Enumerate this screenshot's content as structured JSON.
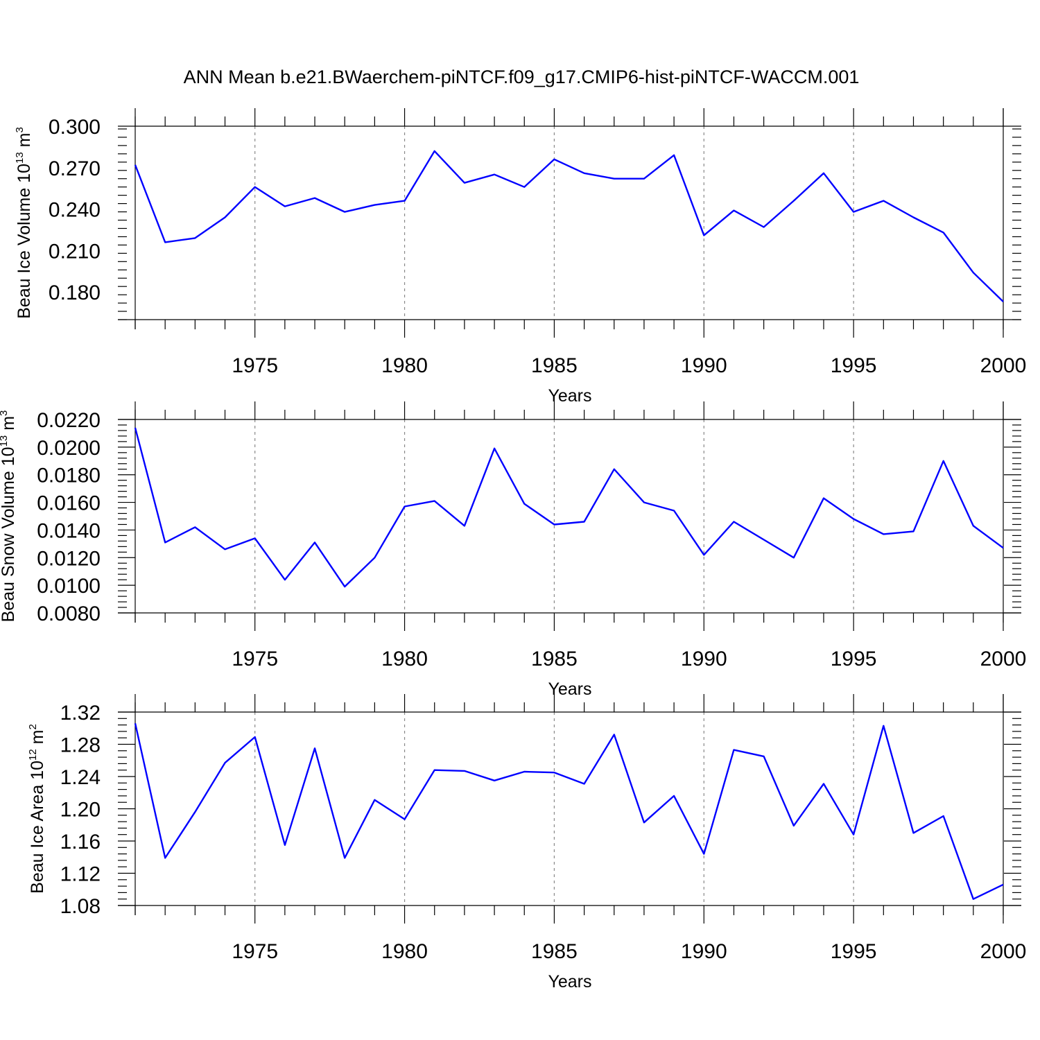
{
  "title": "ANN Mean b.e21.BWaerchem-piNTCF.f09_g17.CMIP6-hist-piNTCF-WACCM.001",
  "line_color": "#0000ff",
  "chart_data": [
    {
      "type": "line",
      "title": "",
      "xlabel": "Years",
      "ylabel": "Beau Ice Volume 10",
      "ylabel_sup": "13",
      "ylabel_unit": " m",
      "ylabel_unit_sup": "3",
      "xlim": [
        1971,
        2000
      ],
      "ylim": [
        0.16,
        0.3
      ],
      "yticks": [
        0.18,
        0.21,
        0.24,
        0.27,
        0.3
      ],
      "ytick_labels": [
        "0.180",
        "0.210",
        "0.240",
        "0.270",
        "0.300"
      ],
      "xticks": [
        1975,
        1980,
        1985,
        1990,
        1995,
        2000
      ],
      "xtick_labels": [
        "1975",
        "1980",
        "1985",
        "1990",
        "1995",
        "2000"
      ],
      "grid_x": [
        1975,
        1980,
        1985,
        1990,
        1995
      ],
      "x": [
        1971,
        1972,
        1973,
        1974,
        1975,
        1976,
        1977,
        1978,
        1979,
        1980,
        1981,
        1982,
        1983,
        1984,
        1985,
        1986,
        1987,
        1988,
        1989,
        1990,
        1991,
        1992,
        1993,
        1994,
        1995,
        1996,
        1997,
        1998,
        1999,
        2000
      ],
      "series": [
        {
          "name": "Beau Ice Volume",
          "values": [
            0.272,
            0.216,
            0.219,
            0.234,
            0.256,
            0.242,
            0.248,
            0.238,
            0.243,
            0.246,
            0.282,
            0.259,
            0.265,
            0.256,
            0.276,
            0.266,
            0.262,
            0.262,
            0.279,
            0.221,
            0.239,
            0.227,
            0.246,
            0.266,
            0.238,
            0.246,
            0.234,
            0.223,
            0.194,
            0.173
          ]
        }
      ]
    },
    {
      "type": "line",
      "title": "",
      "xlabel": "Years",
      "ylabel": "Beau Snow Volume 10",
      "ylabel_sup": "13",
      "ylabel_unit": " m",
      "ylabel_unit_sup": "3",
      "xlim": [
        1971,
        2000
      ],
      "ylim": [
        0.008,
        0.022
      ],
      "yticks": [
        0.008,
        0.01,
        0.012,
        0.014,
        0.016,
        0.018,
        0.02,
        0.022
      ],
      "ytick_labels": [
        "0.0080",
        "0.0100",
        "0.0120",
        "0.0140",
        "0.0160",
        "0.0180",
        "0.0200",
        "0.0220"
      ],
      "xticks": [
        1975,
        1980,
        1985,
        1990,
        1995,
        2000
      ],
      "xtick_labels": [
        "1975",
        "1980",
        "1985",
        "1990",
        "1995",
        "2000"
      ],
      "grid_x": [
        1975,
        1980,
        1985,
        1990,
        1995
      ],
      "x": [
        1971,
        1972,
        1973,
        1974,
        1975,
        1976,
        1977,
        1978,
        1979,
        1980,
        1981,
        1982,
        1983,
        1984,
        1985,
        1986,
        1987,
        1988,
        1989,
        1990,
        1991,
        1992,
        1993,
        1994,
        1995,
        1996,
        1997,
        1998,
        1999,
        2000
      ],
      "series": [
        {
          "name": "Beau Snow Volume",
          "values": [
            0.0214,
            0.0131,
            0.0142,
            0.0126,
            0.0134,
            0.0104,
            0.0131,
            0.0099,
            0.012,
            0.0157,
            0.0161,
            0.0143,
            0.0199,
            0.0159,
            0.0144,
            0.0146,
            0.0184,
            0.016,
            0.0154,
            0.0122,
            0.0146,
            0.0133,
            0.012,
            0.0163,
            0.0148,
            0.0137,
            0.0139,
            0.019,
            0.0143,
            0.0127
          ]
        }
      ]
    },
    {
      "type": "line",
      "title": "",
      "xlabel": "Years",
      "ylabel": "Beau Ice Area 10",
      "ylabel_sup": "12",
      "ylabel_unit": " m",
      "ylabel_unit_sup": "2",
      "xlim": [
        1971,
        2000
      ],
      "ylim": [
        1.08,
        1.32
      ],
      "yticks": [
        1.08,
        1.12,
        1.16,
        1.2,
        1.24,
        1.28,
        1.32
      ],
      "ytick_labels": [
        "1.08",
        "1.12",
        "1.16",
        "1.20",
        "1.24",
        "1.28",
        "1.32"
      ],
      "xticks": [
        1975,
        1980,
        1985,
        1990,
        1995,
        2000
      ],
      "xtick_labels": [
        "1975",
        "1980",
        "1985",
        "1990",
        "1995",
        "2000"
      ],
      "grid_x": [
        1975,
        1980,
        1985,
        1990,
        1995
      ],
      "x": [
        1971,
        1972,
        1973,
        1974,
        1975,
        1976,
        1977,
        1978,
        1979,
        1980,
        1981,
        1982,
        1983,
        1984,
        1985,
        1986,
        1987,
        1988,
        1989,
        1990,
        1991,
        1992,
        1993,
        1994,
        1995,
        1996,
        1997,
        1998,
        1999,
        2000
      ],
      "series": [
        {
          "name": "Beau Ice Area",
          "values": [
            1.306,
            1.139,
            1.196,
            1.257,
            1.289,
            1.155,
            1.275,
            1.139,
            1.211,
            1.187,
            1.248,
            1.247,
            1.235,
            1.246,
            1.245,
            1.231,
            1.292,
            1.183,
            1.216,
            1.144,
            1.273,
            1.265,
            1.179,
            1.231,
            1.168,
            1.303,
            1.17,
            1.191,
            1.088,
            1.106
          ]
        }
      ]
    }
  ]
}
